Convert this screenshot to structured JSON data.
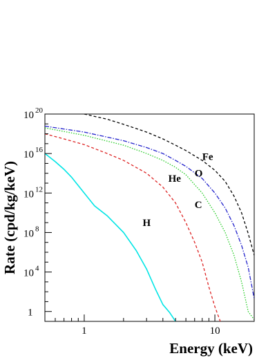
{
  "chart_data": {
    "type": "line",
    "title": "",
    "xlabel": "Energy (keV)",
    "ylabel": "Rate (cpd/kg/keV)",
    "x_scale": "log",
    "y_scale": "log",
    "xlim": [
      0.5,
      20
    ],
    "ylim": [
      0.1,
      100000000000000000000
    ],
    "x_ticks": [
      {
        "value": 1,
        "label": "1"
      },
      {
        "value": 10,
        "label": "10"
      }
    ],
    "y_ticks": [
      {
        "value": 1,
        "base": "1",
        "exp": ""
      },
      {
        "value": 10000,
        "base": "10",
        "exp": "4"
      },
      {
        "value": 100000000,
        "base": "10",
        "exp": "8"
      },
      {
        "value": 1000000000000,
        "base": "10",
        "exp": "12"
      },
      {
        "value": 10000000000000000,
        "base": "10",
        "exp": "16"
      },
      {
        "value": 100000000000000000000,
        "base": "10",
        "exp": "20"
      }
    ],
    "grid": false,
    "legend": "none",
    "series": [
      {
        "label": "H",
        "color": "#00e5e5",
        "dash": "solid",
        "label_point": [
          2.8,
          1000000000
        ],
        "x": [
          0.5,
          0.6,
          0.7,
          0.8,
          1.0,
          1.2,
          1.5,
          2.0,
          2.5,
          3.0,
          3.5,
          4.0,
          4.5,
          5.0
        ],
        "y": [
          1e+16,
          1500000000000000.0,
          250000000000000.0,
          40000000000000.0,
          1000000000000.0,
          50000000000.0,
          5000000000.0,
          100000000.0,
          1500000.0,
          20000.0,
          200,
          5,
          0.8,
          0.1
        ]
      },
      {
        "label": "He",
        "color": "#dd2222",
        "dash": "dashed",
        "label_point": [
          4.4,
          30000000000000
        ],
        "x": [
          0.5,
          0.7,
          1.0,
          1.5,
          2.0,
          3.0,
          4.0,
          5.0,
          6.0,
          7.0,
          8.0,
          9.0,
          10.0,
          11.0
        ],
        "y": [
          1e+18,
          3e+17,
          8e+16,
          1e+16,
          2000000000000000.0,
          100000000000000.0,
          4000000000000.0,
          100000000000.0,
          1000000000.0,
          10000000.0,
          100000.0,
          300,
          3,
          0.1
        ]
      },
      {
        "label": "C",
        "color": "#22cc22",
        "dash": "dotted",
        "label_point": [
          7.0,
          70000000000
        ],
        "x": [
          0.5,
          1.0,
          2.0,
          3.0,
          4.0,
          5.0,
          6.0,
          8.0,
          10.0,
          12.0,
          14.0,
          16.0,
          18.0,
          20.0
        ],
        "y": [
          4e+18,
          7e+17,
          7e+16,
          1e+16,
          2000000000000000.0,
          400000000000000.0,
          70000000000000.0,
          1000000000000.0,
          10000000000.0,
          100000000.0,
          500000.0,
          1000,
          1,
          0.15
        ]
      },
      {
        "label": "O",
        "color": "#2222cc",
        "dash": "dashdot",
        "label_point": [
          7.0,
          100000000000000
        ],
        "x": [
          0.5,
          1.0,
          2.0,
          3.0,
          4.0,
          5.0,
          6.0,
          8.0,
          10.0,
          12.0,
          14.0,
          16.0,
          18.0,
          20.0
        ],
        "y": [
          6e+18,
          1.5e+18,
          2e+17,
          4e+16,
          1e+16,
          2000000000000000.0,
          500000000000000.0,
          30000000000000.0,
          1000000000000.0,
          30000000000.0,
          500000000.0,
          5000000.0,
          30000.0,
          20
        ]
      },
      {
        "label": "Fe",
        "color": "#000000",
        "dash": "dashed",
        "label_point": [
          8.0,
          5000000000000000
        ],
        "x": [
          1.0,
          1.5,
          2.0,
          3.0,
          4.0,
          5.0,
          6.0,
          8.0,
          10.0,
          12.0,
          14.0,
          16.0,
          18.0,
          20.0
        ],
        "y": [
          1e+20,
          3e+19,
          9e+18,
          1.5e+18,
          3e+17,
          7e+16,
          2e+16,
          2000000000000000.0,
          200000000000000.0,
          15000000000000.0,
          500000000000.0,
          10000000000.0,
          80000000.0,
          500000.0
        ]
      }
    ]
  }
}
